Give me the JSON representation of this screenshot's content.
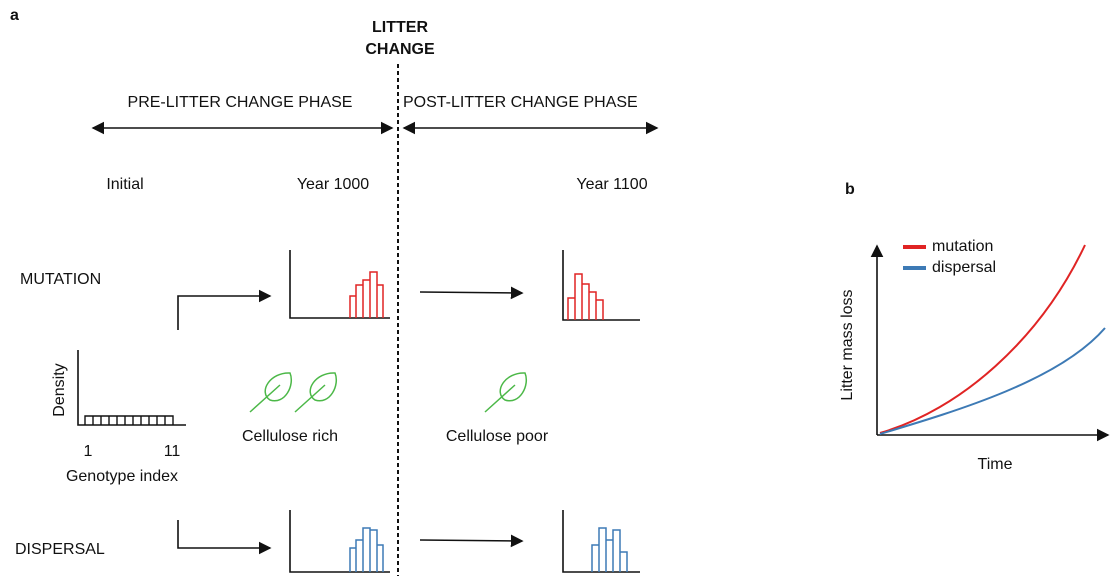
{
  "panel_a": {
    "label": "a",
    "event": [
      "LITTER",
      "CHANGE"
    ],
    "phases": [
      "PRE-LITTER CHANGE PHASE",
      "POST-LITTER CHANGE PHASE"
    ],
    "times": [
      "Initial",
      "Year 1000",
      "Year 1100"
    ],
    "rows": [
      "MUTATION",
      "DISPERSAL"
    ],
    "initial_axes": {
      "y_label": "Density",
      "x_start": "1",
      "x_end": "11",
      "x_label": "Genotype index"
    },
    "litter": [
      "Cellulose rich",
      "Cellulose poor"
    ]
  },
  "panel_b": {
    "label": "b",
    "legend": [
      "mutation",
      "dispersal"
    ],
    "y_label": "Litter mass loss",
    "x_label": "Time"
  }
}
